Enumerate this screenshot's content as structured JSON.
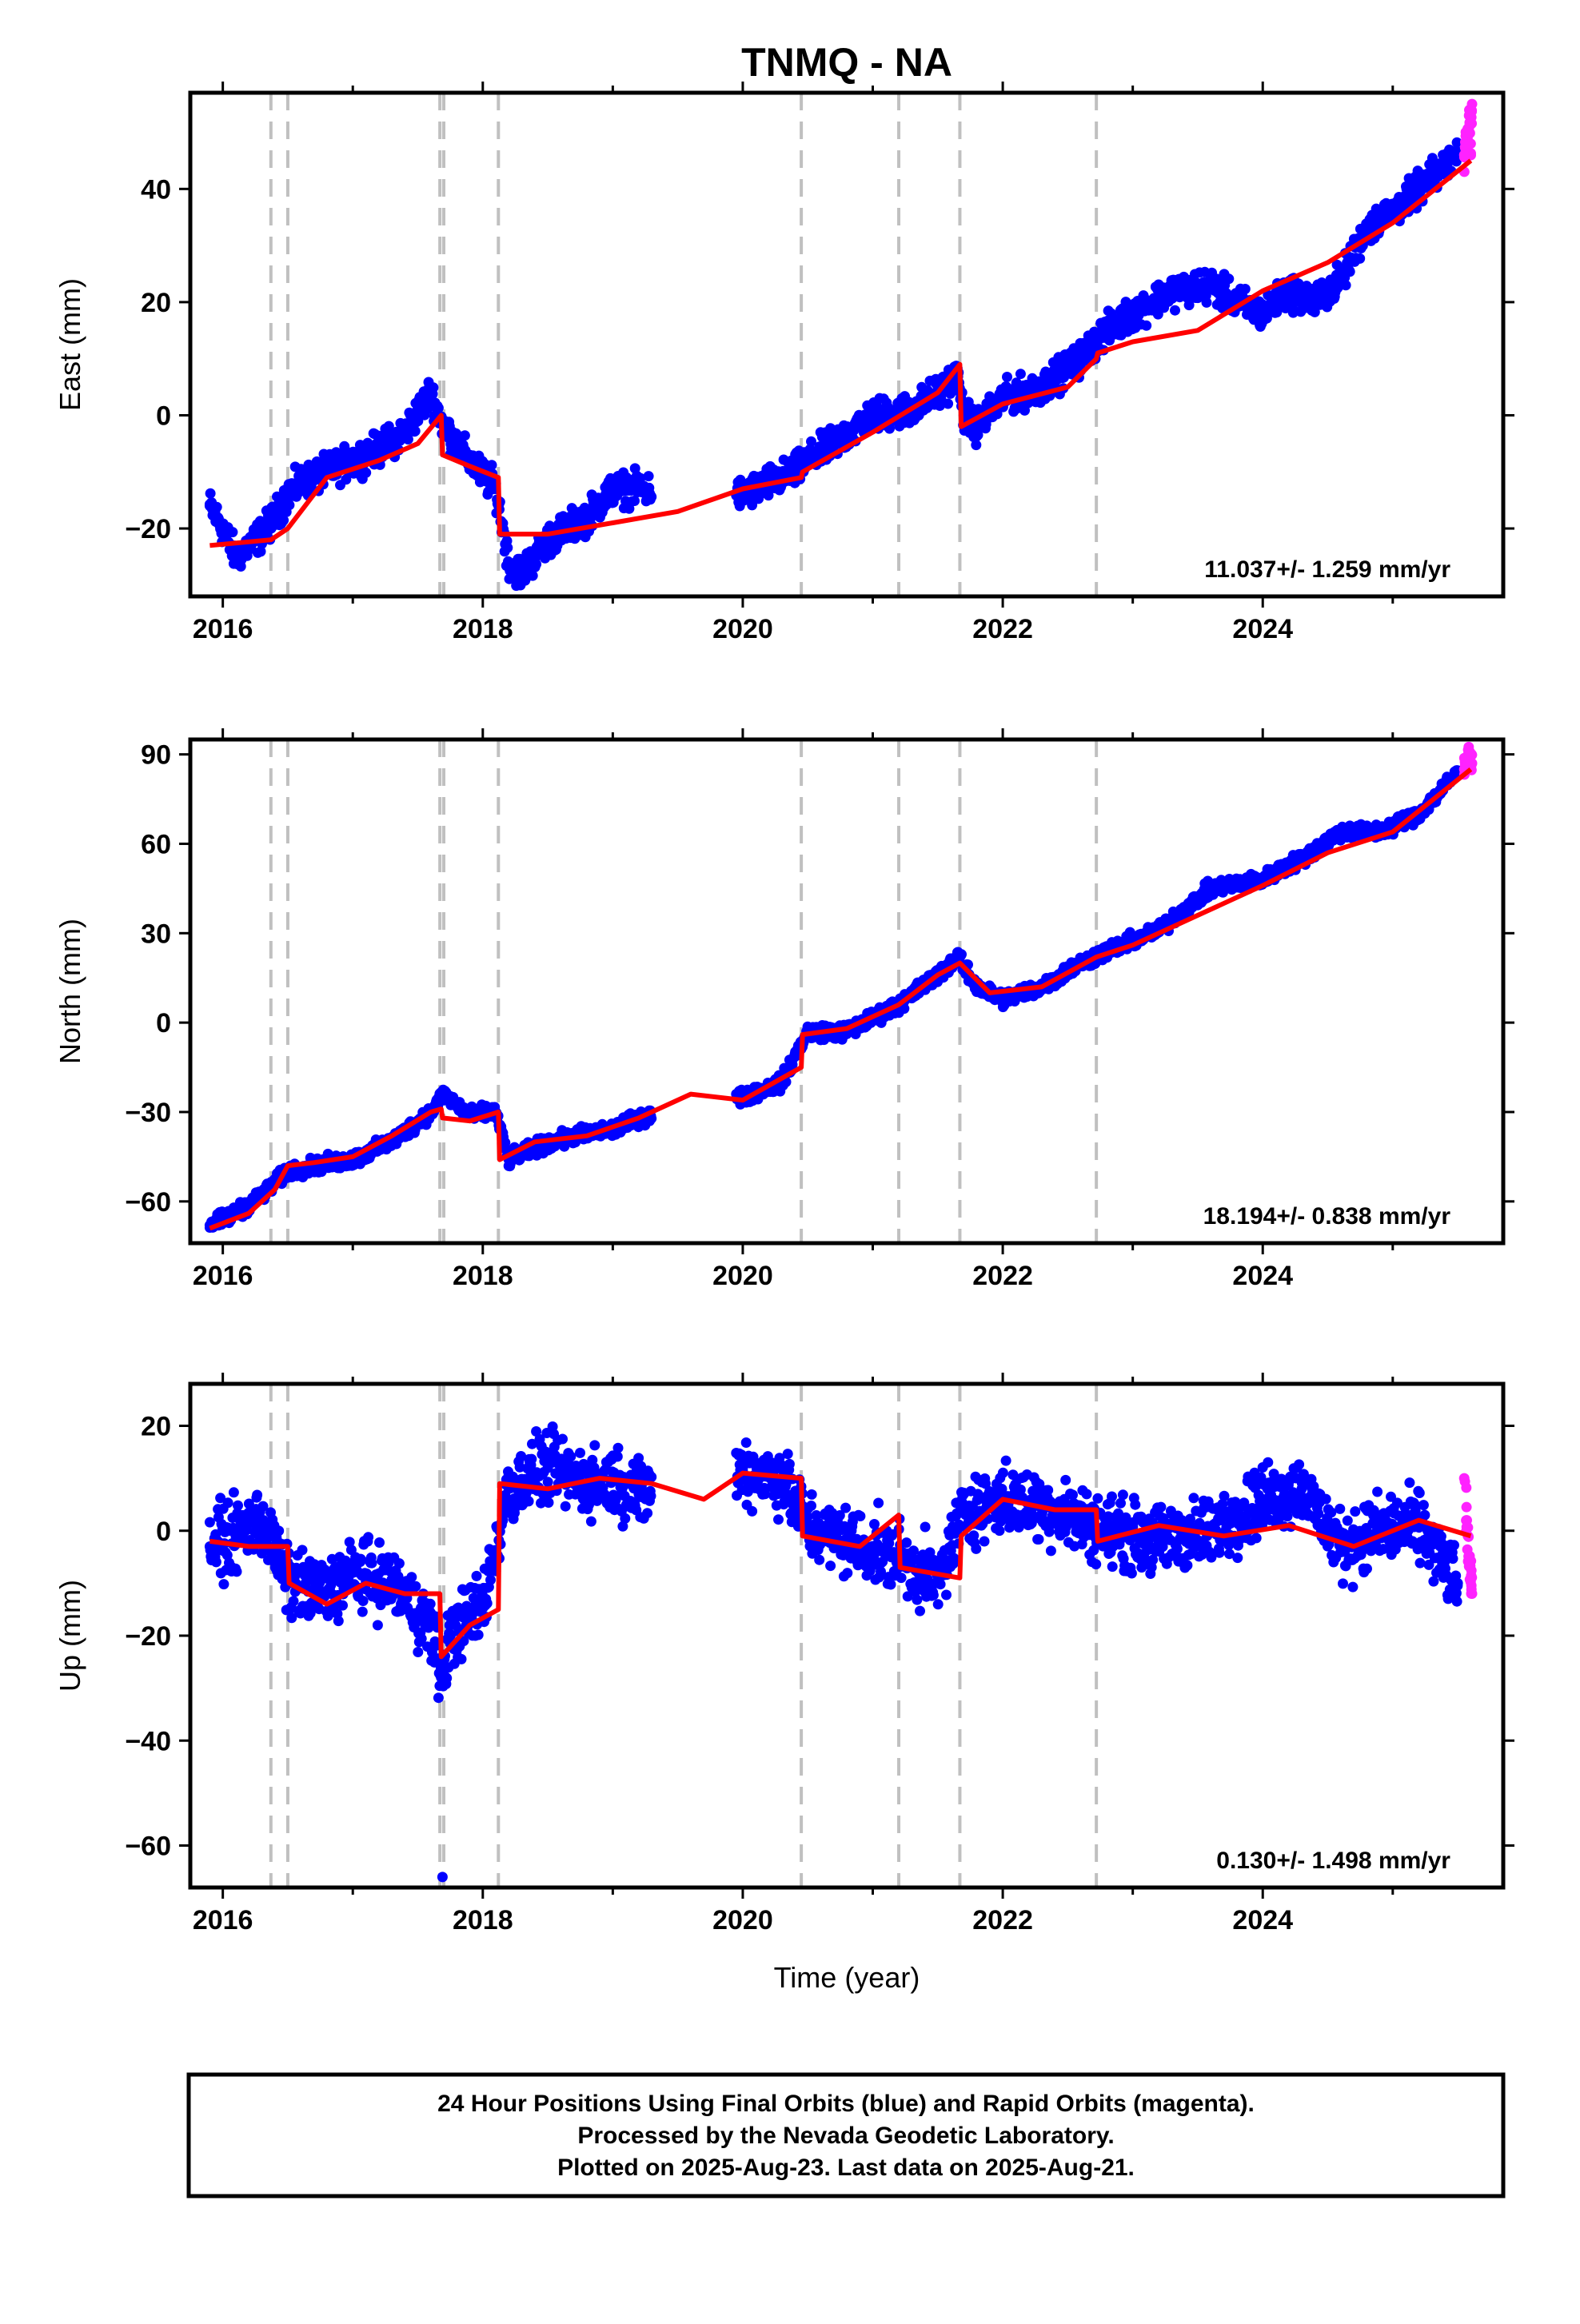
{
  "page": {
    "title": "TNMQ - NA"
  },
  "colors": {
    "final": "#0000ff",
    "rapid": "#ff22ff",
    "model": "#ff0000",
    "events": "#c0c0c0"
  },
  "footer": {
    "line1": "24 Hour Positions Using Final Orbits (blue) and Rapid Orbits (magenta).",
    "line2": "Processed by the Nevada Geodetic Laboratory.",
    "line3": "Plotted on 2025-Aug-23. Last data on 2025-Aug-21."
  },
  "chart_data": [
    {
      "type": "scatter",
      "id": "east",
      "title": "TNMQ - NA",
      "xlabel": "",
      "ylabel": "East (mm)",
      "xlim": [
        2015.75,
        2025.85
      ],
      "ylim": [
        -32,
        57
      ],
      "yticks": [
        -20,
        0,
        20,
        40
      ],
      "xticks": [
        2016,
        2018,
        2020,
        2022,
        2024
      ],
      "rate_label": "11.037+/- 1.259 mm/yr",
      "events": [
        2016.37,
        2016.5,
        2017.67,
        2017.7,
        2018.12,
        2020.45,
        2021.2,
        2021.67,
        2022.72
      ],
      "gaps": [
        [
          2019.3,
          2019.95
        ]
      ],
      "series": [
        {
          "role": "final-orbits",
          "type": "scatter",
          "x": [
            2015.9,
            2016.0,
            2016.1,
            2016.2,
            2016.3,
            2016.4,
            2016.5,
            2016.6,
            2016.8,
            2017.0,
            2017.2,
            2017.4,
            2017.6,
            2017.7,
            2017.9,
            2018.1,
            2018.2,
            2018.3,
            2018.5,
            2018.8,
            2019.0,
            2019.2,
            2020.0,
            2020.2,
            2020.4,
            2020.5,
            2020.7,
            2021.0,
            2021.3,
            2021.5,
            2021.65,
            2021.7,
            2021.8,
            2022.0,
            2022.3,
            2022.6,
            2022.75,
            2023.0,
            2023.3,
            2023.6,
            2023.8,
            2024.0,
            2024.2,
            2024.4,
            2024.6,
            2024.8,
            2025.0,
            2025.2,
            2025.4,
            2025.5
          ],
          "y": [
            -16,
            -20,
            -25,
            -23,
            -21,
            -18,
            -14,
            -12,
            -10,
            -8,
            -6,
            -3,
            4,
            -2,
            -8,
            -13,
            -26,
            -28,
            -22,
            -18,
            -13,
            -13,
            -14,
            -12,
            -10,
            -8,
            -5,
            0,
            1,
            4,
            7,
            0,
            -2,
            3,
            5,
            10,
            14,
            18,
            22,
            23,
            20,
            18,
            22,
            20,
            24,
            33,
            36,
            40,
            44,
            46
          ]
        },
        {
          "role": "rapid-orbits",
          "type": "scatter",
          "x": [
            2025.55,
            2025.57,
            2025.59,
            2025.6,
            2025.61
          ],
          "y": [
            46,
            50,
            53,
            48,
            55
          ]
        },
        {
          "role": "model",
          "type": "line",
          "x": [
            2015.9,
            2016.37,
            2016.5,
            2016.8,
            2017.2,
            2017.5,
            2017.68,
            2017.69,
            2017.9,
            2018.12,
            2018.13,
            2018.5,
            2019.0,
            2019.5,
            2020.0,
            2020.45,
            2020.46,
            2021.0,
            2021.5,
            2021.67,
            2021.68,
            2022.0,
            2022.5,
            2022.72,
            2022.73,
            2023.0,
            2023.5,
            2024.0,
            2024.5,
            2025.0,
            2025.6
          ],
          "y": [
            -23,
            -22,
            -20,
            -11,
            -8,
            -5,
            0,
            -7,
            -9,
            -11,
            -21,
            -21,
            -19,
            -17,
            -13,
            -11,
            -10,
            -3,
            4,
            9,
            -2,
            2,
            5,
            10,
            11,
            13,
            15,
            22,
            27,
            34,
            45
          ]
        }
      ]
    },
    {
      "type": "scatter",
      "id": "north",
      "xlabel": "",
      "ylabel": "North (mm)",
      "xlim": [
        2015.75,
        2025.85
      ],
      "ylim": [
        -74,
        95
      ],
      "yticks": [
        -60,
        -30,
        0,
        30,
        60,
        90
      ],
      "xticks": [
        2016,
        2018,
        2020,
        2022,
        2024
      ],
      "rate_label": "18.194+/- 0.838 mm/yr",
      "events": [
        2016.37,
        2016.5,
        2017.67,
        2017.7,
        2018.12,
        2020.45,
        2021.2,
        2021.67,
        2022.72
      ],
      "gaps": [
        [
          2019.3,
          2019.95
        ]
      ],
      "series": [
        {
          "role": "final-orbits",
          "type": "scatter",
          "x": [
            2015.9,
            2016.1,
            2016.3,
            2016.5,
            2016.7,
            2017.0,
            2017.3,
            2017.6,
            2017.7,
            2017.9,
            2018.1,
            2018.2,
            2018.4,
            2018.7,
            2019.0,
            2019.2,
            2020.0,
            2020.3,
            2020.5,
            2020.8,
            2021.2,
            2021.5,
            2021.65,
            2021.8,
            2022.0,
            2022.3,
            2022.6,
            2022.8,
            2023.2,
            2023.6,
            2024.0,
            2024.3,
            2024.6,
            2024.9,
            2025.2,
            2025.5
          ],
          "y": [
            -68,
            -64,
            -58,
            -50,
            -48,
            -46,
            -40,
            -30,
            -24,
            -31,
            -30,
            -46,
            -42,
            -38,
            -36,
            -32,
            -25,
            -20,
            -3,
            -3,
            6,
            16,
            22,
            12,
            8,
            12,
            20,
            24,
            31,
            45,
            48,
            55,
            64,
            64,
            70,
            84
          ]
        },
        {
          "role": "rapid-orbits",
          "type": "scatter",
          "x": [
            2025.55,
            2025.57,
            2025.59,
            2025.61
          ],
          "y": [
            85,
            88,
            91,
            87
          ]
        },
        {
          "role": "model",
          "type": "line",
          "x": [
            2015.9,
            2016.2,
            2016.4,
            2016.5,
            2016.7,
            2017.0,
            2017.3,
            2017.6,
            2017.68,
            2017.69,
            2017.9,
            2018.12,
            2018.13,
            2018.4,
            2018.8,
            2019.2,
            2019.6,
            2020.0,
            2020.45,
            2020.46,
            2020.8,
            2021.2,
            2021.5,
            2021.67,
            2021.9,
            2022.3,
            2022.72,
            2023.0,
            2023.5,
            2024.0,
            2024.5,
            2025.0,
            2025.6
          ],
          "y": [
            -69,
            -64,
            -56,
            -48,
            -47,
            -45,
            -38,
            -30,
            -29,
            -32,
            -33,
            -30,
            -46,
            -40,
            -38,
            -32,
            -24,
            -26,
            -15,
            -4,
            -2,
            6,
            16,
            20,
            10,
            12,
            22,
            26,
            36,
            46,
            57,
            64,
            85
          ]
        }
      ]
    },
    {
      "type": "scatter",
      "id": "up",
      "xlabel": "Time (year)",
      "ylabel": "Up (mm)",
      "xlim": [
        2015.75,
        2025.85
      ],
      "ylim": [
        -68,
        28
      ],
      "yticks": [
        -60,
        -40,
        -20,
        0,
        20
      ],
      "xticks": [
        2016,
        2018,
        2020,
        2022,
        2024
      ],
      "rate_label": "0.130+/- 1.498 mm/yr",
      "events": [
        2016.37,
        2016.5,
        2017.67,
        2017.7,
        2018.12,
        2020.45,
        2021.2,
        2021.67,
        2022.72
      ],
      "gaps": [
        [
          2019.3,
          2019.95
        ]
      ],
      "series": [
        {
          "role": "final-orbits",
          "type": "scatter",
          "x": [
            2015.9,
            2016.1,
            2016.3,
            2016.5,
            2016.8,
            2017.0,
            2017.3,
            2017.6,
            2017.68,
            2017.75,
            2018.0,
            2018.2,
            2018.5,
            2018.8,
            2019.0,
            2019.2,
            2020.0,
            2020.3,
            2020.5,
            2020.8,
            2021.2,
            2021.5,
            2021.7,
            2022.0,
            2022.4,
            2022.8,
            2023.2,
            2023.6,
            2024.0,
            2024.3,
            2024.6,
            2024.9,
            2025.2,
            2025.5,
            2017.69
          ],
          "y": [
            -3,
            -1,
            2,
            -10,
            -12,
            -8,
            -10,
            -18,
            -28,
            -20,
            -14,
            8,
            12,
            9,
            10,
            7,
            12,
            10,
            1,
            -2,
            -5,
            -10,
            4,
            6,
            4,
            0,
            -2,
            0,
            6,
            8,
            -3,
            0,
            1,
            -10,
            -66
          ]
        },
        {
          "role": "rapid-orbits",
          "type": "scatter",
          "x": [
            2025.55,
            2025.57,
            2025.59,
            2025.61
          ],
          "y": [
            10,
            2,
            -6,
            -12
          ]
        },
        {
          "role": "model",
          "type": "line",
          "x": [
            2015.9,
            2016.2,
            2016.37,
            2016.5,
            2016.51,
            2016.8,
            2017.1,
            2017.4,
            2017.67,
            2017.68,
            2017.9,
            2018.12,
            2018.13,
            2018.5,
            2018.9,
            2019.3,
            2019.7,
            2020.0,
            2020.45,
            2020.46,
            2020.9,
            2021.2,
            2021.21,
            2021.67,
            2021.68,
            2022.0,
            2022.4,
            2022.72,
            2022.73,
            2023.2,
            2023.7,
            2024.2,
            2024.7,
            2025.2,
            2025.6
          ],
          "y": [
            -2,
            -3,
            -3,
            -3,
            -10,
            -14,
            -10,
            -12,
            -12,
            -24,
            -18,
            -15,
            9,
            8,
            10,
            9,
            6,
            11,
            10,
            -1,
            -3,
            3,
            -7,
            -9,
            -1,
            6,
            4,
            4,
            -2,
            1,
            -1,
            1,
            -3,
            2,
            -1
          ]
        }
      ]
    }
  ]
}
